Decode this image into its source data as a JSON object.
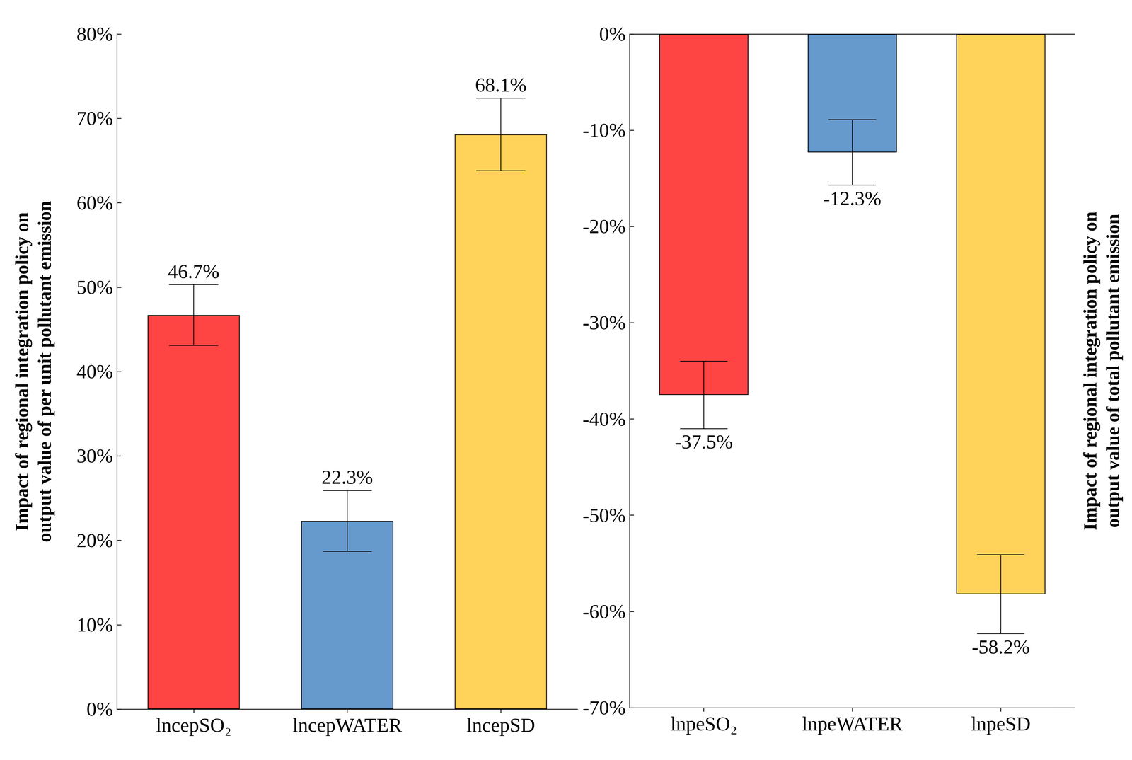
{
  "chart_data": [
    {
      "type": "bar",
      "ylabel": "Impact of regional integration policy on\noutput value of per unit pollutant emission",
      "categories": [
        "lncepSO₂",
        "lncepWATER",
        "lncepSD"
      ],
      "values": [
        46.7,
        22.3,
        68.1
      ],
      "value_labels": [
        "46.7%",
        "22.3%",
        "68.1%"
      ],
      "errors": [
        3.6,
        3.6,
        4.3
      ],
      "colors": [
        "#ff4444",
        "#6699cc",
        "#ffd35a"
      ],
      "ylim": [
        0,
        80
      ],
      "yticks": [
        {
          "value": 0,
          "label": "0%"
        },
        {
          "value": 10,
          "label": "10%"
        },
        {
          "value": 20,
          "label": "20%"
        },
        {
          "value": 30,
          "label": "30%"
        },
        {
          "value": 40,
          "label": "40%"
        },
        {
          "value": 50,
          "label": "50%"
        },
        {
          "value": 60,
          "label": "60%"
        },
        {
          "value": 70,
          "label": "70%"
        },
        {
          "value": 80,
          "label": "80%"
        }
      ],
      "grid": false,
      "data_labels": true
    },
    {
      "type": "bar",
      "ylabel": "Impact of regional integration policy on\noutput value of total pollutant emission",
      "categories": [
        "lnpeSO₂",
        "lnpeWATER",
        "lnpeSD"
      ],
      "values": [
        -37.5,
        -12.3,
        -58.2
      ],
      "value_labels": [
        "-37.5%",
        "-12.3%",
        "-58.2%"
      ],
      "errors": [
        3.5,
        3.4,
        4.1
      ],
      "colors": [
        "#ff4444",
        "#6699cc",
        "#ffd35a"
      ],
      "ylim": [
        -70,
        0
      ],
      "yticks": [
        {
          "value": -70,
          "label": "-70%"
        },
        {
          "value": -60,
          "label": "-60%"
        },
        {
          "value": -50,
          "label": "-50%"
        },
        {
          "value": -40,
          "label": "-40%"
        },
        {
          "value": -30,
          "label": "-30%"
        },
        {
          "value": -20,
          "label": "-20%"
        },
        {
          "value": -10,
          "label": "-10%"
        },
        {
          "value": 0,
          "label": "0%"
        }
      ],
      "grid": false,
      "data_labels": true
    }
  ]
}
